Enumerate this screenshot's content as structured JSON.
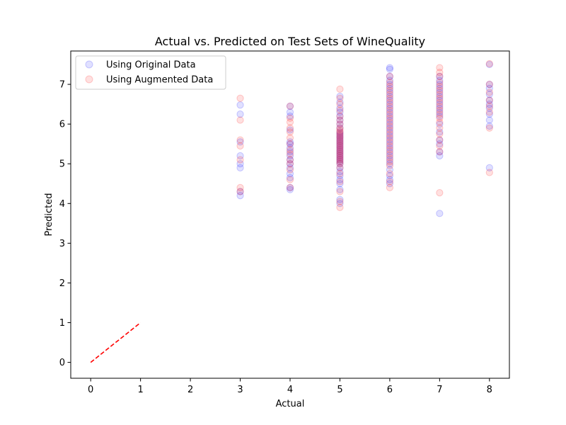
{
  "chart_data": {
    "type": "scatter",
    "title": "Actual vs. Predicted on Test Sets of WineQuality",
    "xlabel": "Actual",
    "ylabel": "Predicted",
    "xlim": [
      -0.4,
      8.4
    ],
    "ylim": [
      -0.4,
      7.84
    ],
    "xticks": [
      0,
      1,
      2,
      3,
      4,
      5,
      6,
      7,
      8
    ],
    "yticks": [
      0,
      1,
      2,
      3,
      4,
      5,
      6,
      7
    ],
    "grid": false,
    "legend_position": "top-left",
    "series": [
      {
        "name": "Using Original Data",
        "color": "#0000ff",
        "alpha": 0.12,
        "points": [
          [
            3,
            4.2
          ],
          [
            3,
            4.3
          ],
          [
            3,
            4.9
          ],
          [
            3,
            5.0
          ],
          [
            3,
            5.2
          ],
          [
            3,
            5.55
          ],
          [
            3,
            6.25
          ],
          [
            3,
            6.48
          ],
          [
            4,
            4.35
          ],
          [
            4,
            4.4
          ],
          [
            4,
            4.65
          ],
          [
            4,
            4.75
          ],
          [
            4,
            4.9
          ],
          [
            4,
            5.0
          ],
          [
            4,
            5.1
          ],
          [
            4,
            5.2
          ],
          [
            4,
            5.3
          ],
          [
            4,
            5.4
          ],
          [
            4,
            5.5
          ],
          [
            4,
            5.55
          ],
          [
            4,
            5.85
          ],
          [
            4,
            6.2
          ],
          [
            4,
            6.3
          ],
          [
            4,
            6.45
          ],
          [
            5,
            4.0
          ],
          [
            5,
            4.1
          ],
          [
            5,
            4.35
          ],
          [
            5,
            4.5
          ],
          [
            5,
            4.6
          ],
          [
            5,
            4.7
          ],
          [
            5,
            4.8
          ],
          [
            5,
            4.9
          ],
          [
            5,
            5.0
          ],
          [
            5,
            5.05
          ],
          [
            5,
            5.1
          ],
          [
            5,
            5.15
          ],
          [
            5,
            5.2
          ],
          [
            5,
            5.25
          ],
          [
            5,
            5.3
          ],
          [
            5,
            5.35
          ],
          [
            5,
            5.4
          ],
          [
            5,
            5.45
          ],
          [
            5,
            5.5
          ],
          [
            5,
            5.55
          ],
          [
            5,
            5.6
          ],
          [
            5,
            5.65
          ],
          [
            5,
            5.7
          ],
          [
            5,
            5.75
          ],
          [
            5,
            5.8
          ],
          [
            5,
            5.9
          ],
          [
            5,
            6.0
          ],
          [
            5,
            6.1
          ],
          [
            5,
            6.2
          ],
          [
            5,
            6.3
          ],
          [
            5,
            6.4
          ],
          [
            5,
            6.55
          ],
          [
            5,
            6.7
          ],
          [
            6,
            4.5
          ],
          [
            6,
            4.6
          ],
          [
            6,
            4.7
          ],
          [
            6,
            4.85
          ],
          [
            6,
            5.0
          ],
          [
            6,
            5.1
          ],
          [
            6,
            5.2
          ],
          [
            6,
            5.3
          ],
          [
            6,
            5.4
          ],
          [
            6,
            5.5
          ],
          [
            6,
            5.6
          ],
          [
            6,
            5.7
          ],
          [
            6,
            5.8
          ],
          [
            6,
            5.9
          ],
          [
            6,
            6.0
          ],
          [
            6,
            6.1
          ],
          [
            6,
            6.2
          ],
          [
            6,
            6.3
          ],
          [
            6,
            6.4
          ],
          [
            6,
            6.5
          ],
          [
            6,
            6.6
          ],
          [
            6,
            6.7
          ],
          [
            6,
            6.8
          ],
          [
            6,
            6.9
          ],
          [
            6,
            7.0
          ],
          [
            6,
            7.1
          ],
          [
            6,
            7.2
          ],
          [
            6,
            7.38
          ],
          [
            6,
            7.42
          ],
          [
            7,
            3.75
          ],
          [
            7,
            5.2
          ],
          [
            7,
            5.3
          ],
          [
            7,
            5.5
          ],
          [
            7,
            5.6
          ],
          [
            7,
            5.8
          ],
          [
            7,
            6.0
          ],
          [
            7,
            6.2
          ],
          [
            7,
            6.3
          ],
          [
            7,
            6.4
          ],
          [
            7,
            6.5
          ],
          [
            7,
            6.6
          ],
          [
            7,
            6.7
          ],
          [
            7,
            6.8
          ],
          [
            7,
            6.9
          ],
          [
            7,
            7.0
          ],
          [
            7,
            7.1
          ],
          [
            7,
            7.2
          ],
          [
            8,
            4.9
          ],
          [
            8,
            5.95
          ],
          [
            8,
            6.1
          ],
          [
            8,
            6.25
          ],
          [
            8,
            6.4
          ],
          [
            8,
            6.5
          ],
          [
            8,
            6.6
          ],
          [
            8,
            6.75
          ],
          [
            8,
            6.9
          ],
          [
            8,
            7.0
          ],
          [
            8,
            7.5
          ]
        ]
      },
      {
        "name": "Using Augmented Data",
        "color": "#ff0000",
        "alpha": 0.12,
        "points": [
          [
            3,
            4.3
          ],
          [
            3,
            4.4
          ],
          [
            3,
            5.1
          ],
          [
            3,
            5.45
          ],
          [
            3,
            5.6
          ],
          [
            3,
            6.1
          ],
          [
            3,
            6.65
          ],
          [
            4,
            4.4
          ],
          [
            4,
            4.6
          ],
          [
            4,
            4.85
          ],
          [
            4,
            5.0
          ],
          [
            4,
            5.1
          ],
          [
            4,
            5.25
          ],
          [
            4,
            5.35
          ],
          [
            4,
            5.5
          ],
          [
            4,
            5.65
          ],
          [
            4,
            5.8
          ],
          [
            4,
            5.9
          ],
          [
            4,
            6.05
          ],
          [
            4,
            6.15
          ],
          [
            4,
            6.45
          ],
          [
            5,
            3.9
          ],
          [
            5,
            4.05
          ],
          [
            5,
            4.3
          ],
          [
            5,
            4.55
          ],
          [
            5,
            4.75
          ],
          [
            5,
            4.9
          ],
          [
            5,
            5.0
          ],
          [
            5,
            5.05
          ],
          [
            5,
            5.1
          ],
          [
            5,
            5.15
          ],
          [
            5,
            5.2
          ],
          [
            5,
            5.25
          ],
          [
            5,
            5.3
          ],
          [
            5,
            5.35
          ],
          [
            5,
            5.4
          ],
          [
            5,
            5.45
          ],
          [
            5,
            5.5
          ],
          [
            5,
            5.55
          ],
          [
            5,
            5.6
          ],
          [
            5,
            5.65
          ],
          [
            5,
            5.7
          ],
          [
            5,
            5.75
          ],
          [
            5,
            5.8
          ],
          [
            5,
            5.85
          ],
          [
            5,
            5.9
          ],
          [
            5,
            6.0
          ],
          [
            5,
            6.1
          ],
          [
            5,
            6.2
          ],
          [
            5,
            6.35
          ],
          [
            5,
            6.5
          ],
          [
            5,
            6.65
          ],
          [
            5,
            6.88
          ],
          [
            6,
            4.4
          ],
          [
            6,
            4.55
          ],
          [
            6,
            4.75
          ],
          [
            6,
            4.95
          ],
          [
            6,
            5.05
          ],
          [
            6,
            5.15
          ],
          [
            6,
            5.25
          ],
          [
            6,
            5.35
          ],
          [
            6,
            5.45
          ],
          [
            6,
            5.55
          ],
          [
            6,
            5.65
          ],
          [
            6,
            5.75
          ],
          [
            6,
            5.85
          ],
          [
            6,
            5.95
          ],
          [
            6,
            6.05
          ],
          [
            6,
            6.15
          ],
          [
            6,
            6.25
          ],
          [
            6,
            6.35
          ],
          [
            6,
            6.45
          ],
          [
            6,
            6.55
          ],
          [
            6,
            6.65
          ],
          [
            6,
            6.75
          ],
          [
            6,
            6.85
          ],
          [
            6,
            6.95
          ],
          [
            6,
            7.05
          ],
          [
            6,
            7.2
          ],
          [
            7,
            4.27
          ],
          [
            7,
            5.3
          ],
          [
            7,
            5.45
          ],
          [
            7,
            5.6
          ],
          [
            7,
            5.75
          ],
          [
            7,
            5.9
          ],
          [
            7,
            6.05
          ],
          [
            7,
            6.15
          ],
          [
            7,
            6.25
          ],
          [
            7,
            6.35
          ],
          [
            7,
            6.45
          ],
          [
            7,
            6.55
          ],
          [
            7,
            6.65
          ],
          [
            7,
            6.75
          ],
          [
            7,
            6.85
          ],
          [
            7,
            6.95
          ],
          [
            7,
            7.05
          ],
          [
            7,
            7.2
          ],
          [
            7,
            7.3
          ],
          [
            7,
            7.42
          ],
          [
            8,
            4.78
          ],
          [
            8,
            5.9
          ],
          [
            8,
            6.3
          ],
          [
            8,
            6.45
          ],
          [
            8,
            6.6
          ],
          [
            8,
            6.8
          ],
          [
            8,
            7.0
          ],
          [
            8,
            7.52
          ]
        ]
      },
      {
        "type": "line",
        "style": "dashed",
        "color": "#ff0000",
        "x": [
          0,
          1
        ],
        "y": [
          0,
          1
        ]
      }
    ]
  }
}
